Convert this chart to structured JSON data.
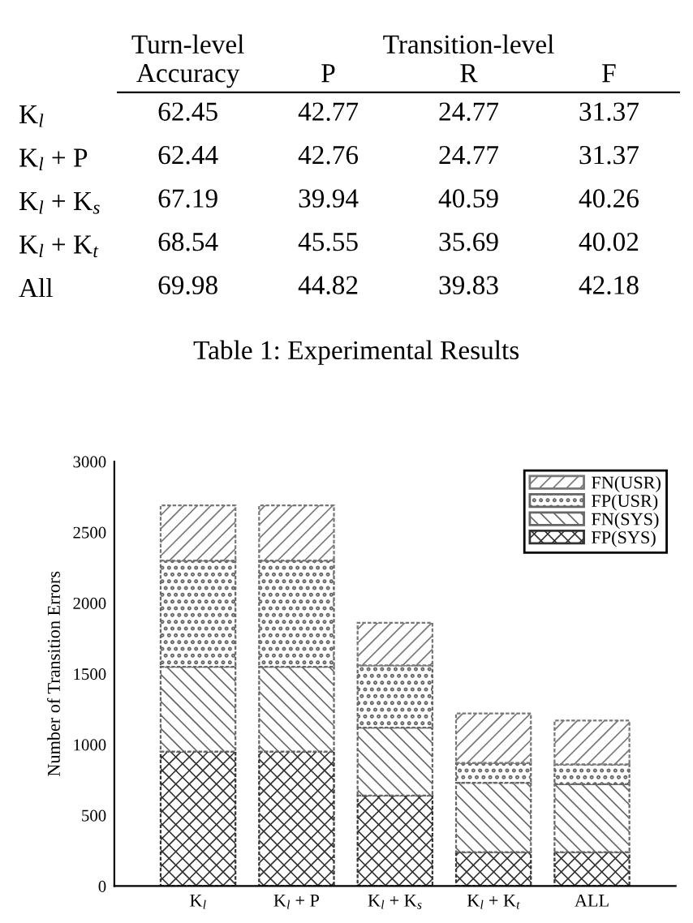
{
  "chart_data": [
    {
      "type": "heatmap",
      "title": "Table 1: Experimental Results",
      "categories": [
        "Accuracy",
        "P",
        "R",
        "F"
      ],
      "y_categories": [
        "K$_{l}$",
        "K$_{l}$ + P",
        "K$_{l}$ + K$_{s}$",
        "K$_{l}$ + K$_{t}$",
        "All"
      ],
      "cells": [
        [
          62.45,
          42.77,
          24.77,
          31.37
        ],
        [
          62.44,
          42.76,
          24.77,
          31.37
        ],
        [
          67.19,
          39.94,
          40.59,
          40.26
        ],
        [
          68.54,
          45.55,
          35.69,
          40.02
        ],
        [
          69.98,
          44.82,
          39.83,
          42.18
        ]
      ],
      "data_labels": true,
      "annotations": [
        "Turn-level",
        "Transition-level"
      ]
    },
    {
      "type": "bar",
      "stacked": true,
      "ylabel": "Number of Transition Errors",
      "categories": [
        "K$_{l}$",
        "K$_{l}$ + P",
        "K$_{l}$ + K$_{s}$",
        "K$_{l}$ + K$_{t}$",
        "ALL"
      ],
      "series": [
        {
          "name": "FP(SYS)",
          "color": "#333333",
          "values": [
            950,
            950,
            640,
            240,
            240
          ]
        },
        {
          "name": "FN(SYS)",
          "color": "#666666",
          "values": [
            600,
            600,
            480,
            490,
            480
          ]
        },
        {
          "name": "FP(USR)",
          "color": "#666666",
          "values": [
            750,
            750,
            440,
            140,
            140
          ]
        },
        {
          "name": "FN(USR)",
          "color": "#777777",
          "values": [
            390,
            390,
            300,
            350,
            310
          ]
        }
      ],
      "ylim": [
        0,
        3000
      ],
      "yticks": [
        0,
        500,
        1000,
        1500,
        2000,
        2500,
        3000
      ],
      "grid": false,
      "legend": "top right"
    }
  ]
}
